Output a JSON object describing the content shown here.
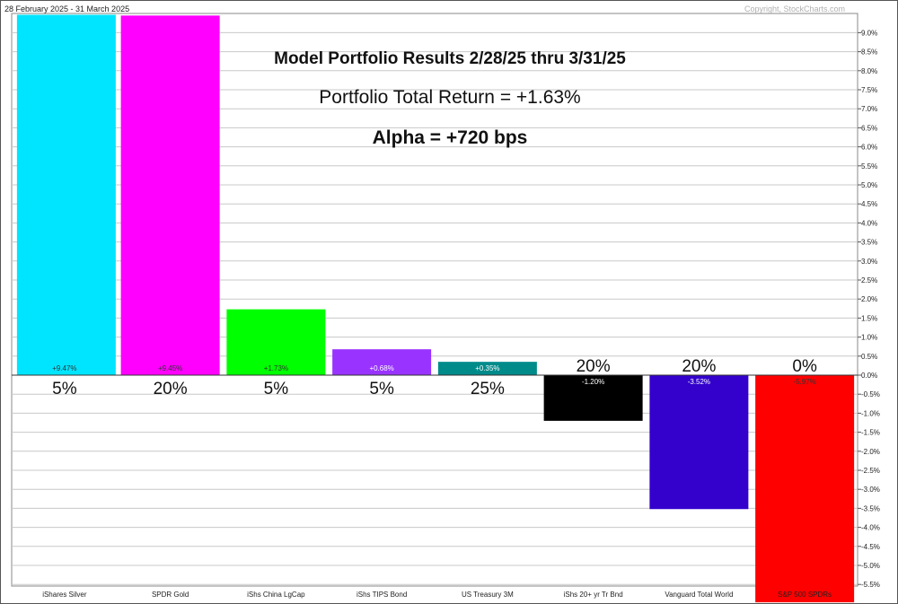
{
  "header": {
    "date_range": "28 February 2025 - 31 March 2025",
    "copyright": "Copyright, StockCharts.com"
  },
  "annotations": {
    "title": "Model Portfolio Results 2/28/25 thru 3/31/25",
    "total_return": "Portfolio Total Return = +1.63%",
    "alpha": "Alpha = +720 bps"
  },
  "chart_data": {
    "type": "bar",
    "categories": [
      "iShares Silver",
      "SPDR Gold",
      "iShs China LgCap",
      "iShs TIPS Bond",
      "US Treasury 3M",
      "iShs 20+ yr Tr Bnd",
      "Vanguard Total World",
      "S&P 500 SPDRs"
    ],
    "values": [
      9.47,
      9.45,
      1.73,
      0.68,
      0.35,
      -1.2,
      -3.52,
      -5.97
    ],
    "value_labels": [
      "+9.47%",
      "+9.45%",
      "+1.73%",
      "+0.68%",
      "+0.35%",
      "-1.20%",
      "-3.52%",
      "-5.97%"
    ],
    "weights": [
      "5%",
      "20%",
      "5%",
      "5%",
      "25%",
      "20%",
      "20%",
      "0%"
    ],
    "colors": [
      "#00e5ff",
      "#ff00ff",
      "#00ff00",
      "#9933ff",
      "#008b8b",
      "#000000",
      "#3300cc",
      "#ff0000"
    ],
    "label_colors": [
      "#333333",
      "#333333",
      "#333333",
      "#ffffff",
      "#ffffff",
      "#ffffff",
      "#ffffff",
      "#333333"
    ],
    "yaxis": {
      "position": "right",
      "ylim": [
        -5.6,
        9.4
      ],
      "ticks": [
        9.0,
        8.5,
        8.0,
        7.5,
        7.0,
        6.5,
        6.0,
        5.5,
        5.0,
        4.5,
        4.0,
        3.5,
        3.0,
        2.5,
        2.0,
        1.5,
        1.0,
        0.5,
        0.0,
        -0.5,
        -1.0,
        -1.5,
        -2.0,
        -2.5,
        -3.0,
        -3.5,
        -4.0,
        -4.5,
        -5.0,
        -5.5
      ],
      "tick_labels": [
        "9.0%",
        "8.5%",
        "8.0%",
        "7.5%",
        "7.0%",
        "6.5%",
        "6.0%",
        "5.5%",
        "5.0%",
        "4.5%",
        "4.0%",
        "3.5%",
        "3.0%",
        "2.5%",
        "2.0%",
        "1.5%",
        "1.0%",
        "0.5%",
        "0.0%",
        "-0.5%",
        "-1.0%",
        "-1.5%",
        "-2.0%",
        "-2.5%",
        "-3.0%",
        "-3.5%",
        "-4.0%",
        "-4.5%",
        "-5.0%",
        "-5.5%"
      ]
    },
    "grid": true,
    "legend": "none"
  }
}
